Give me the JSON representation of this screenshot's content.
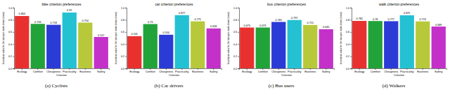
{
  "chart_data": [
    {
      "type": "bar",
      "title": "bike criterion preferences",
      "caption": "(a) Cyclists",
      "x_label": "Criterion",
      "y_label": "Importance value for the transport mode choice (mean)",
      "categories": [
        "Ecology",
        "Comfort",
        "Cheapness",
        "Practicality",
        "Easiness",
        "Safety"
      ],
      "values": [
        0.863,
        0.733,
        0.718,
        0.92,
        0.754,
        0.517
      ],
      "colors": [
        "#e8312f",
        "#22a33a",
        "#2b3bd6",
        "#24c1d3",
        "#b7c93a",
        "#c431c9"
      ],
      "ylim": [
        0,
        1
      ],
      "yticks": [
        {
          "value": 0,
          "label": "0.0"
        },
        {
          "value": 0.2,
          "label": "0.2"
        },
        {
          "value": 0.4,
          "label": "0.4"
        },
        {
          "value": 0.6,
          "label": "0.6"
        },
        {
          "value": 0.8,
          "label": "0.8"
        },
        {
          "value": 1,
          "label": "1.0"
        }
      ],
      "data_labels": true
    },
    {
      "type": "bar",
      "title": "car criterion preferences",
      "caption": "(b) Car drivers",
      "x_label": "Criterion",
      "y_label": "Importance value for the transport mode choice (mean)",
      "categories": [
        "Ecology",
        "Comfort",
        "Cheapness",
        "Practicality",
        "Easiness",
        "Safety"
      ],
      "values": [
        0.531,
        0.73,
        0.554,
        0.877,
        0.775,
        0.658
      ],
      "colors": [
        "#e8312f",
        "#22a33a",
        "#2b3bd6",
        "#24c1d3",
        "#b7c93a",
        "#c431c9"
      ],
      "ylim": [
        0,
        1
      ],
      "yticks": [
        {
          "value": 0,
          "label": "0.0"
        },
        {
          "value": 0.2,
          "label": "0.2"
        },
        {
          "value": 0.4,
          "label": "0.4"
        },
        {
          "value": 0.6,
          "label": "0.6"
        },
        {
          "value": 0.8,
          "label": "0.8"
        },
        {
          "value": 1,
          "label": "1.0"
        }
      ],
      "data_labels": true
    },
    {
      "type": "bar",
      "title": "bus criterion preferences",
      "caption": "(c) Bus users",
      "x_label": "Criterion",
      "y_label": "Importance value for the transport mode choice (mean)",
      "categories": [
        "Ecology",
        "Comfort",
        "Cheapness",
        "Practicality",
        "Easiness",
        "Safety"
      ],
      "values": [
        0.673,
        0.673,
        0.765,
        0.797,
        0.715,
        0.645
      ],
      "colors": [
        "#e8312f",
        "#22a33a",
        "#2b3bd6",
        "#24c1d3",
        "#b7c93a",
        "#c431c9"
      ],
      "ylim": [
        0,
        1
      ],
      "yticks": [
        {
          "value": 0,
          "label": "0.0"
        },
        {
          "value": 0.2,
          "label": "0.2"
        },
        {
          "value": 0.4,
          "label": "0.4"
        },
        {
          "value": 0.6,
          "label": "0.6"
        },
        {
          "value": 0.8,
          "label": "0.8"
        },
        {
          "value": 1,
          "label": "1.0"
        }
      ],
      "data_labels": true
    },
    {
      "type": "bar",
      "title": "walk criterion preferences",
      "caption": "(d) Walkers",
      "x_label": "Criterion",
      "y_label": "Importance value for the transport mode choice (mean)",
      "categories": [
        "Ecology",
        "Comfort",
        "Cheapness",
        "Practicality",
        "Easiness",
        "Safety"
      ],
      "values": [
        0.782,
        0.78,
        0.777,
        0.875,
        0.774,
        0.689
      ],
      "colors": [
        "#e8312f",
        "#22a33a",
        "#2b3bd6",
        "#24c1d3",
        "#b7c93a",
        "#c431c9"
      ],
      "ylim": [
        0,
        1
      ],
      "yticks": [
        {
          "value": 0,
          "label": "0.0"
        },
        {
          "value": 0.2,
          "label": "0.2"
        },
        {
          "value": 0.4,
          "label": "0.4"
        },
        {
          "value": 0.6,
          "label": "0.6"
        },
        {
          "value": 0.8,
          "label": "0.8"
        },
        {
          "value": 1,
          "label": "1.0"
        }
      ],
      "data_labels": true
    }
  ]
}
